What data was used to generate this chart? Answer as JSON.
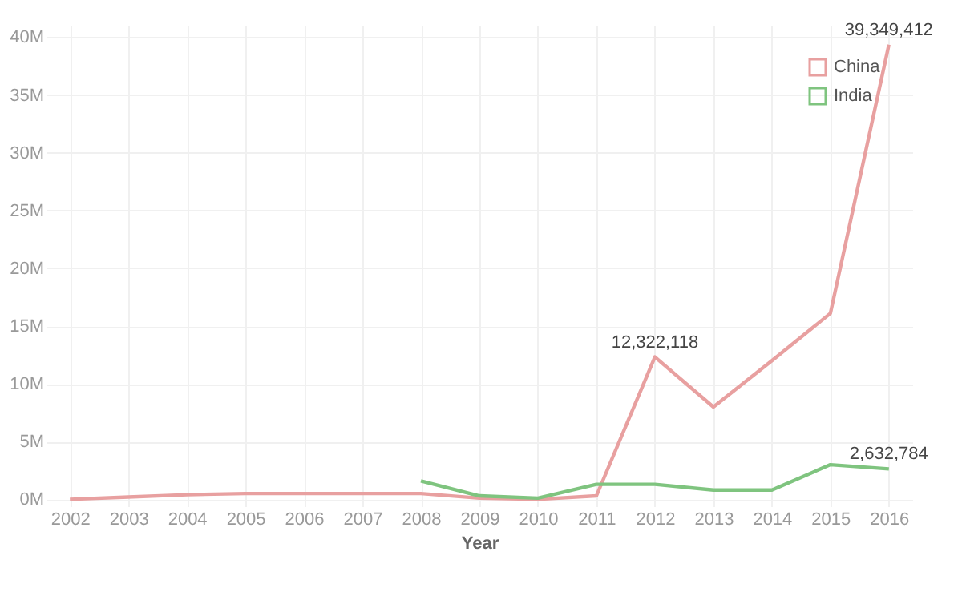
{
  "chart_data": {
    "type": "line",
    "xlabel": "Year",
    "categories": [
      "2002",
      "2003",
      "2004",
      "2005",
      "2006",
      "2007",
      "2008",
      "2009",
      "2010",
      "2011",
      "2012",
      "2013",
      "2014",
      "2015",
      "2016"
    ],
    "series": [
      {
        "name": "China",
        "color": "#e8a0a0",
        "values": [
          0,
          200000,
          400000,
          500000,
          500000,
          500000,
          500000,
          100000,
          0,
          300000,
          12322118,
          8000000,
          12000000,
          16100000,
          39349412
        ],
        "value_labels": [
          null,
          null,
          null,
          null,
          null,
          null,
          null,
          null,
          null,
          null,
          "12,322,118",
          null,
          null,
          null,
          "39,349,412"
        ]
      },
      {
        "name": "India",
        "color": "#7fc47f",
        "values": [
          null,
          null,
          null,
          null,
          null,
          null,
          1600000,
          300000,
          100000,
          1300000,
          1300000,
          800000,
          800000,
          3000000,
          2632784
        ],
        "value_labels": [
          null,
          null,
          null,
          null,
          null,
          null,
          null,
          null,
          null,
          null,
          null,
          null,
          null,
          null,
          "2,632,784"
        ]
      }
    ],
    "ylim": [
      -600000,
      41000000
    ],
    "yticks": [
      {
        "value": 0,
        "label": "0M"
      },
      {
        "value": 5000000,
        "label": "5M"
      },
      {
        "value": 10000000,
        "label": "10M"
      },
      {
        "value": 15000000,
        "label": "15M"
      },
      {
        "value": 20000000,
        "label": "20M"
      },
      {
        "value": 25000000,
        "label": "25M"
      },
      {
        "value": 30000000,
        "label": "30M"
      },
      {
        "value": 35000000,
        "label": "35M"
      },
      {
        "value": 40000000,
        "label": "40M"
      }
    ],
    "grid": true,
    "legend": "top right",
    "line_style": "solid"
  }
}
